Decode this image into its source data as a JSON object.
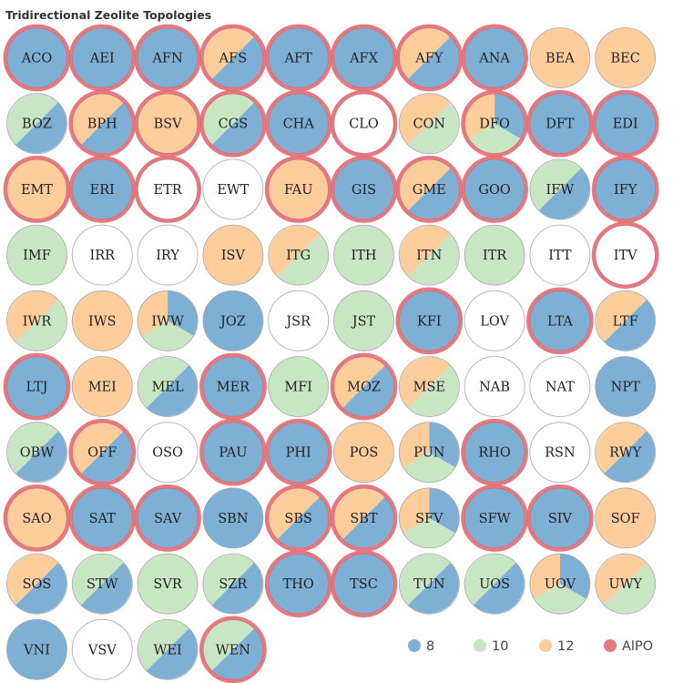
{
  "chart_data": {
    "type": "pie",
    "title": "Tridirectional Zeolite Topologies",
    "legend": [
      {
        "key": "8",
        "label": "8",
        "color": "#7eb0d5"
      },
      {
        "key": "10",
        "label": "10",
        "color": "#c8e6c3"
      },
      {
        "key": "12",
        "label": "12",
        "color": "#fdcd9c"
      },
      {
        "key": "AlPO",
        "label": "AlPO",
        "color": "#e06b73"
      }
    ],
    "legend_position": "bottom-right",
    "items": [
      {
        "code": "ACO",
        "rings": [
          "8"
        ],
        "alpo": true
      },
      {
        "code": "AEI",
        "rings": [
          "8"
        ],
        "alpo": true
      },
      {
        "code": "AFN",
        "rings": [
          "8"
        ],
        "alpo": true
      },
      {
        "code": "AFS",
        "rings": [
          "8",
          "12"
        ],
        "alpo": true
      },
      {
        "code": "AFT",
        "rings": [
          "8"
        ],
        "alpo": true
      },
      {
        "code": "AFX",
        "rings": [
          "8"
        ],
        "alpo": true
      },
      {
        "code": "AFY",
        "rings": [
          "8",
          "12"
        ],
        "alpo": true
      },
      {
        "code": "ANA",
        "rings": [
          "8"
        ],
        "alpo": true
      },
      {
        "code": "BEA",
        "rings": [
          "12"
        ],
        "alpo": false
      },
      {
        "code": "BEC",
        "rings": [
          "12"
        ],
        "alpo": false
      },
      {
        "code": "BOZ",
        "rings": [
          "8",
          "10"
        ],
        "alpo": false
      },
      {
        "code": "BPH",
        "rings": [
          "8",
          "12"
        ],
        "alpo": true
      },
      {
        "code": "BSV",
        "rings": [
          "12"
        ],
        "alpo": true
      },
      {
        "code": "CGS",
        "rings": [
          "8",
          "10"
        ],
        "alpo": true
      },
      {
        "code": "CHA",
        "rings": [
          "8"
        ],
        "alpo": true
      },
      {
        "code": "CLO",
        "rings": [],
        "alpo": true
      },
      {
        "code": "CON",
        "rings": [
          "10",
          "12"
        ],
        "alpo": false
      },
      {
        "code": "DFO",
        "rings": [
          "8",
          "10",
          "12"
        ],
        "alpo": true
      },
      {
        "code": "DFT",
        "rings": [
          "8"
        ],
        "alpo": true
      },
      {
        "code": "EDI",
        "rings": [
          "8"
        ],
        "alpo": true
      },
      {
        "code": "EMT",
        "rings": [
          "12"
        ],
        "alpo": true
      },
      {
        "code": "ERI",
        "rings": [
          "8"
        ],
        "alpo": true
      },
      {
        "code": "ETR",
        "rings": [],
        "alpo": true
      },
      {
        "code": "EWT",
        "rings": [],
        "alpo": false
      },
      {
        "code": "FAU",
        "rings": [
          "12"
        ],
        "alpo": true
      },
      {
        "code": "GIS",
        "rings": [
          "8"
        ],
        "alpo": true
      },
      {
        "code": "GME",
        "rings": [
          "8",
          "12"
        ],
        "alpo": true
      },
      {
        "code": "GOO",
        "rings": [
          "8"
        ],
        "alpo": true
      },
      {
        "code": "IFW",
        "rings": [
          "8",
          "10"
        ],
        "alpo": false
      },
      {
        "code": "IFY",
        "rings": [
          "8"
        ],
        "alpo": true
      },
      {
        "code": "IMF",
        "rings": [
          "10"
        ],
        "alpo": false
      },
      {
        "code": "IRR",
        "rings": [],
        "alpo": false
      },
      {
        "code": "IRY",
        "rings": [],
        "alpo": false
      },
      {
        "code": "ISV",
        "rings": [
          "12"
        ],
        "alpo": false
      },
      {
        "code": "ITG",
        "rings": [
          "10",
          "12"
        ],
        "alpo": false
      },
      {
        "code": "ITH",
        "rings": [
          "10"
        ],
        "alpo": false
      },
      {
        "code": "ITN",
        "rings": [
          "10",
          "12"
        ],
        "alpo": false
      },
      {
        "code": "ITR",
        "rings": [
          "10"
        ],
        "alpo": false
      },
      {
        "code": "ITT",
        "rings": [],
        "alpo": false
      },
      {
        "code": "ITV",
        "rings": [],
        "alpo": true
      },
      {
        "code": "IWR",
        "rings": [
          "10",
          "12"
        ],
        "alpo": false
      },
      {
        "code": "IWS",
        "rings": [
          "12"
        ],
        "alpo": false
      },
      {
        "code": "IWW",
        "rings": [
          "8",
          "10",
          "12"
        ],
        "alpo": false
      },
      {
        "code": "JOZ",
        "rings": [
          "8"
        ],
        "alpo": false
      },
      {
        "code": "JSR",
        "rings": [],
        "alpo": false
      },
      {
        "code": "JST",
        "rings": [
          "10"
        ],
        "alpo": false
      },
      {
        "code": "KFI",
        "rings": [
          "8"
        ],
        "alpo": true
      },
      {
        "code": "LOV",
        "rings": [],
        "alpo": false
      },
      {
        "code": "LTA",
        "rings": [
          "8"
        ],
        "alpo": true
      },
      {
        "code": "LTF",
        "rings": [
          "8",
          "12"
        ],
        "alpo": false
      },
      {
        "code": "LTJ",
        "rings": [
          "8"
        ],
        "alpo": true
      },
      {
        "code": "MEI",
        "rings": [
          "12"
        ],
        "alpo": false
      },
      {
        "code": "MEL",
        "rings": [
          "8",
          "10"
        ],
        "alpo": false
      },
      {
        "code": "MER",
        "rings": [
          "8"
        ],
        "alpo": true
      },
      {
        "code": "MFI",
        "rings": [
          "10"
        ],
        "alpo": false
      },
      {
        "code": "MOZ",
        "rings": [
          "8",
          "12"
        ],
        "alpo": true
      },
      {
        "code": "MSE",
        "rings": [
          "10",
          "12"
        ],
        "alpo": false
      },
      {
        "code": "NAB",
        "rings": [],
        "alpo": false
      },
      {
        "code": "NAT",
        "rings": [],
        "alpo": false
      },
      {
        "code": "NPT",
        "rings": [
          "8"
        ],
        "alpo": false
      },
      {
        "code": "OBW",
        "rings": [
          "8",
          "10"
        ],
        "alpo": false
      },
      {
        "code": "OFF",
        "rings": [
          "8",
          "12"
        ],
        "alpo": true
      },
      {
        "code": "OSO",
        "rings": [],
        "alpo": false
      },
      {
        "code": "PAU",
        "rings": [
          "8"
        ],
        "alpo": true
      },
      {
        "code": "PHI",
        "rings": [
          "8"
        ],
        "alpo": true
      },
      {
        "code": "POS",
        "rings": [
          "12"
        ],
        "alpo": false
      },
      {
        "code": "PUN",
        "rings": [
          "8",
          "10",
          "12"
        ],
        "alpo": false
      },
      {
        "code": "RHO",
        "rings": [
          "8"
        ],
        "alpo": true
      },
      {
        "code": "RSN",
        "rings": [],
        "alpo": false
      },
      {
        "code": "RWY",
        "rings": [
          "8",
          "12"
        ],
        "alpo": false
      },
      {
        "code": "SAO",
        "rings": [
          "12"
        ],
        "alpo": true
      },
      {
        "code": "SAT",
        "rings": [
          "8"
        ],
        "alpo": true
      },
      {
        "code": "SAV",
        "rings": [
          "8"
        ],
        "alpo": true
      },
      {
        "code": "SBN",
        "rings": [
          "8"
        ],
        "alpo": false
      },
      {
        "code": "SBS",
        "rings": [
          "8",
          "12"
        ],
        "alpo": true
      },
      {
        "code": "SBT",
        "rings": [
          "8",
          "12"
        ],
        "alpo": true
      },
      {
        "code": "SFV",
        "rings": [
          "8",
          "10",
          "12"
        ],
        "alpo": false
      },
      {
        "code": "SFW",
        "rings": [
          "8"
        ],
        "alpo": true
      },
      {
        "code": "SIV",
        "rings": [
          "8"
        ],
        "alpo": true
      },
      {
        "code": "SOF",
        "rings": [
          "12"
        ],
        "alpo": false
      },
      {
        "code": "SOS",
        "rings": [
          "8",
          "12"
        ],
        "alpo": false
      },
      {
        "code": "STW",
        "rings": [
          "8",
          "10"
        ],
        "alpo": false
      },
      {
        "code": "SVR",
        "rings": [
          "10"
        ],
        "alpo": false
      },
      {
        "code": "SZR",
        "rings": [
          "8",
          "10"
        ],
        "alpo": false
      },
      {
        "code": "THO",
        "rings": [
          "8"
        ],
        "alpo": true
      },
      {
        "code": "TSC",
        "rings": [
          "8"
        ],
        "alpo": true
      },
      {
        "code": "TUN",
        "rings": [
          "8",
          "10"
        ],
        "alpo": false
      },
      {
        "code": "UOS",
        "rings": [
          "8",
          "10"
        ],
        "alpo": false
      },
      {
        "code": "UOV",
        "rings": [
          "8",
          "10",
          "12"
        ],
        "alpo": false
      },
      {
        "code": "UWY",
        "rings": [
          "10",
          "12"
        ],
        "alpo": false
      },
      {
        "code": "VNI",
        "rings": [
          "8"
        ],
        "alpo": false
      },
      {
        "code": "VSV",
        "rings": [],
        "alpo": false
      },
      {
        "code": "WEI",
        "rings": [
          "8",
          "10"
        ],
        "alpo": false
      },
      {
        "code": "WEN",
        "rings": [
          "8",
          "10"
        ],
        "alpo": true
      }
    ]
  }
}
